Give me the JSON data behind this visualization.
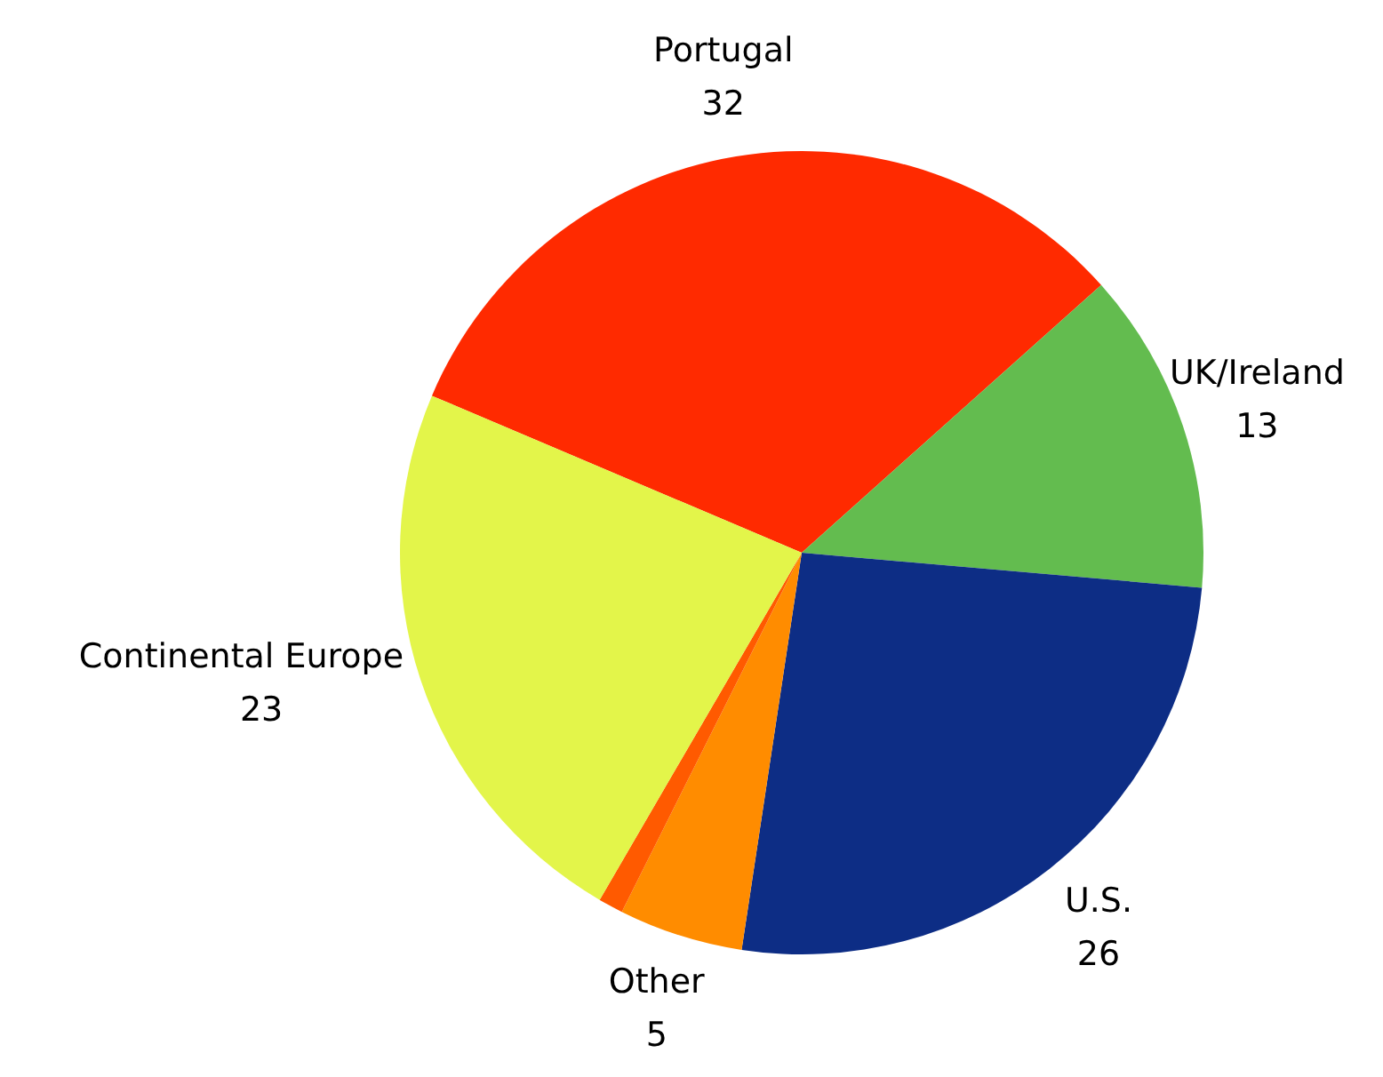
{
  "chart_data": {
    "type": "pie",
    "categories": [
      "Portugal",
      "UK/Ireland",
      "U.S.",
      "Other",
      null,
      "Continental Europe"
    ],
    "values": [
      32,
      13,
      26,
      5,
      1,
      23
    ],
    "colors": [
      "#ff2a00",
      "#63bc4f",
      "#0d2d85",
      "#ff8c00",
      "#ff5a00",
      "#e3f54a"
    ],
    "value_labels": [
      "32",
      "13",
      "26",
      "5",
      null,
      "23"
    ]
  }
}
